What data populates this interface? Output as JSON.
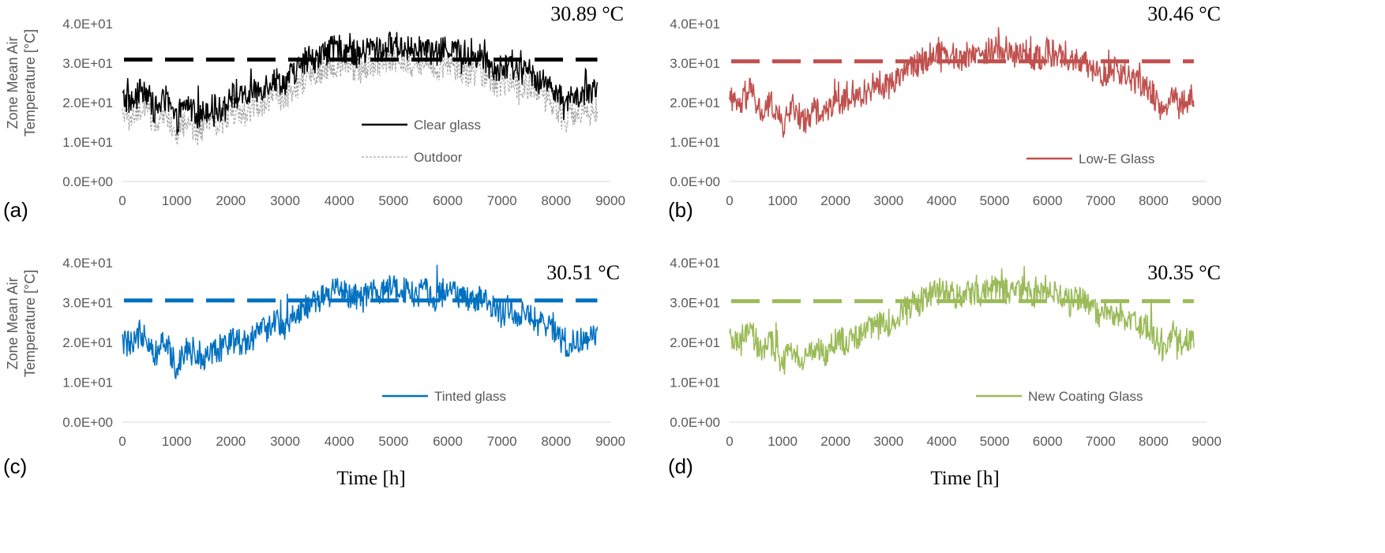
{
  "x_title": "Time [h]",
  "y_title_lines": [
    "Zone Mean Air",
    "Temperature [°C]"
  ],
  "chart_data": [
    {
      "type": "line",
      "panel_label": "(a)",
      "annotation": "30.89 °C",
      "x_ticks": [
        "0",
        "1000",
        "2000",
        "3000",
        "4000",
        "5000",
        "6000",
        "7000",
        "8000",
        "9000"
      ],
      "y_ticks": [
        "0.0E+00",
        "1.0E+01",
        "2.0E+01",
        "3.0E+01",
        "4.0E+01"
      ],
      "xlim": [
        0,
        9000
      ],
      "ylim": [
        0,
        40
      ],
      "threshold": 30.89,
      "legend_position": "bottom-center",
      "series": [
        {
          "name": "Clear glass",
          "color": "#000000",
          "style": "solid",
          "profile": [
            21,
            20,
            24,
            18,
            21,
            15,
            20,
            16,
            19,
            18,
            22,
            21,
            22,
            24,
            26,
            25,
            28,
            30,
            31,
            33,
            34,
            33,
            32,
            34,
            33,
            35,
            34,
            33,
            34,
            32,
            34,
            33,
            31,
            32,
            30,
            28,
            29,
            28,
            27,
            25,
            24,
            19,
            22,
            21,
            23
          ]
        },
        {
          "name": "Outdoor",
          "color": "#a6a6a6",
          "style": "dashed",
          "profile": [
            17,
            16,
            20,
            14,
            17,
            11,
            16,
            12,
            15,
            14,
            18,
            17,
            18,
            20,
            22,
            21,
            24,
            26,
            27,
            29,
            30,
            29,
            28,
            30,
            29,
            31,
            30,
            29,
            30,
            28,
            30,
            29,
            27,
            28,
            26,
            24,
            25,
            24,
            23,
            21,
            20,
            15,
            18,
            17,
            19
          ]
        }
      ]
    },
    {
      "type": "line",
      "panel_label": "(b)",
      "annotation": "30.46 °C",
      "x_ticks": [
        "0",
        "1000",
        "2000",
        "3000",
        "4000",
        "5000",
        "6000",
        "7000",
        "8000",
        "9000"
      ],
      "y_ticks": [
        "0.0E+00",
        "1.0E+01",
        "2.0E+01",
        "3.0E+01",
        "4.0E+01"
      ],
      "xlim": [
        0,
        9000
      ],
      "ylim": [
        0,
        40
      ],
      "threshold": 30.46,
      "legend_position": "bottom-right",
      "series": [
        {
          "name": "Low-E Glass",
          "color": "#c0504d",
          "style": "solid",
          "profile": [
            20,
            19,
            23,
            17,
            20,
            14,
            19,
            15,
            18,
            17,
            21,
            20,
            21,
            23,
            25,
            24,
            27,
            29,
            30,
            32,
            33,
            32,
            31,
            33,
            32,
            34,
            33,
            32,
            33,
            31,
            33,
            32,
            30,
            31,
            29,
            27,
            28,
            27,
            26,
            24,
            23,
            18,
            21,
            20,
            22
          ]
        }
      ]
    },
    {
      "type": "line",
      "panel_label": "(c)",
      "annotation": "30.51 °C",
      "x_ticks": [
        "0",
        "1000",
        "2000",
        "3000",
        "4000",
        "5000",
        "6000",
        "7000",
        "8000",
        "9000"
      ],
      "y_ticks": [
        "0.0E+00",
        "1.0E+01",
        "2.0E+01",
        "3.0E+01",
        "4.0E+01"
      ],
      "xlim": [
        0,
        9000
      ],
      "ylim": [
        0,
        40
      ],
      "threshold": 30.51,
      "legend_position": "bottom-right",
      "series": [
        {
          "name": "Tinted glass",
          "color": "#0070c0",
          "style": "solid",
          "profile": [
            20,
            19,
            23,
            17,
            20,
            14,
            19,
            15,
            18,
            17,
            21,
            20,
            21,
            23,
            25,
            24,
            27,
            29,
            30,
            32,
            33,
            32,
            31,
            33,
            32,
            34,
            33,
            32,
            33,
            31,
            33,
            32,
            30,
            31,
            29,
            27,
            28,
            27,
            26,
            24,
            23,
            18,
            21,
            20,
            22
          ]
        }
      ]
    },
    {
      "type": "line",
      "panel_label": "(d)",
      "annotation": "30.35 °C",
      "x_ticks": [
        "0",
        "1000",
        "2000",
        "3000",
        "4000",
        "5000",
        "6000",
        "7000",
        "8000",
        "9000"
      ],
      "y_ticks": [
        "0.0E+00",
        "1.0E+01",
        "2.0E+01",
        "3.0E+01",
        "4.0E+01"
      ],
      "xlim": [
        0,
        9000
      ],
      "ylim": [
        0,
        40
      ],
      "threshold": 30.35,
      "legend_position": "bottom-right",
      "series": [
        {
          "name": "New Coating Glass",
          "color": "#9bbb59",
          "style": "solid",
          "profile": [
            20,
            19,
            23,
            17,
            20,
            14,
            19,
            15,
            18,
            17,
            21,
            20,
            21,
            23,
            25,
            24,
            27,
            29,
            30,
            32,
            33,
            32,
            31,
            33,
            32,
            34,
            33,
            32,
            33,
            31,
            33,
            32,
            30,
            31,
            29,
            27,
            28,
            27,
            26,
            24,
            23,
            18,
            21,
            20,
            22
          ]
        }
      ]
    }
  ]
}
